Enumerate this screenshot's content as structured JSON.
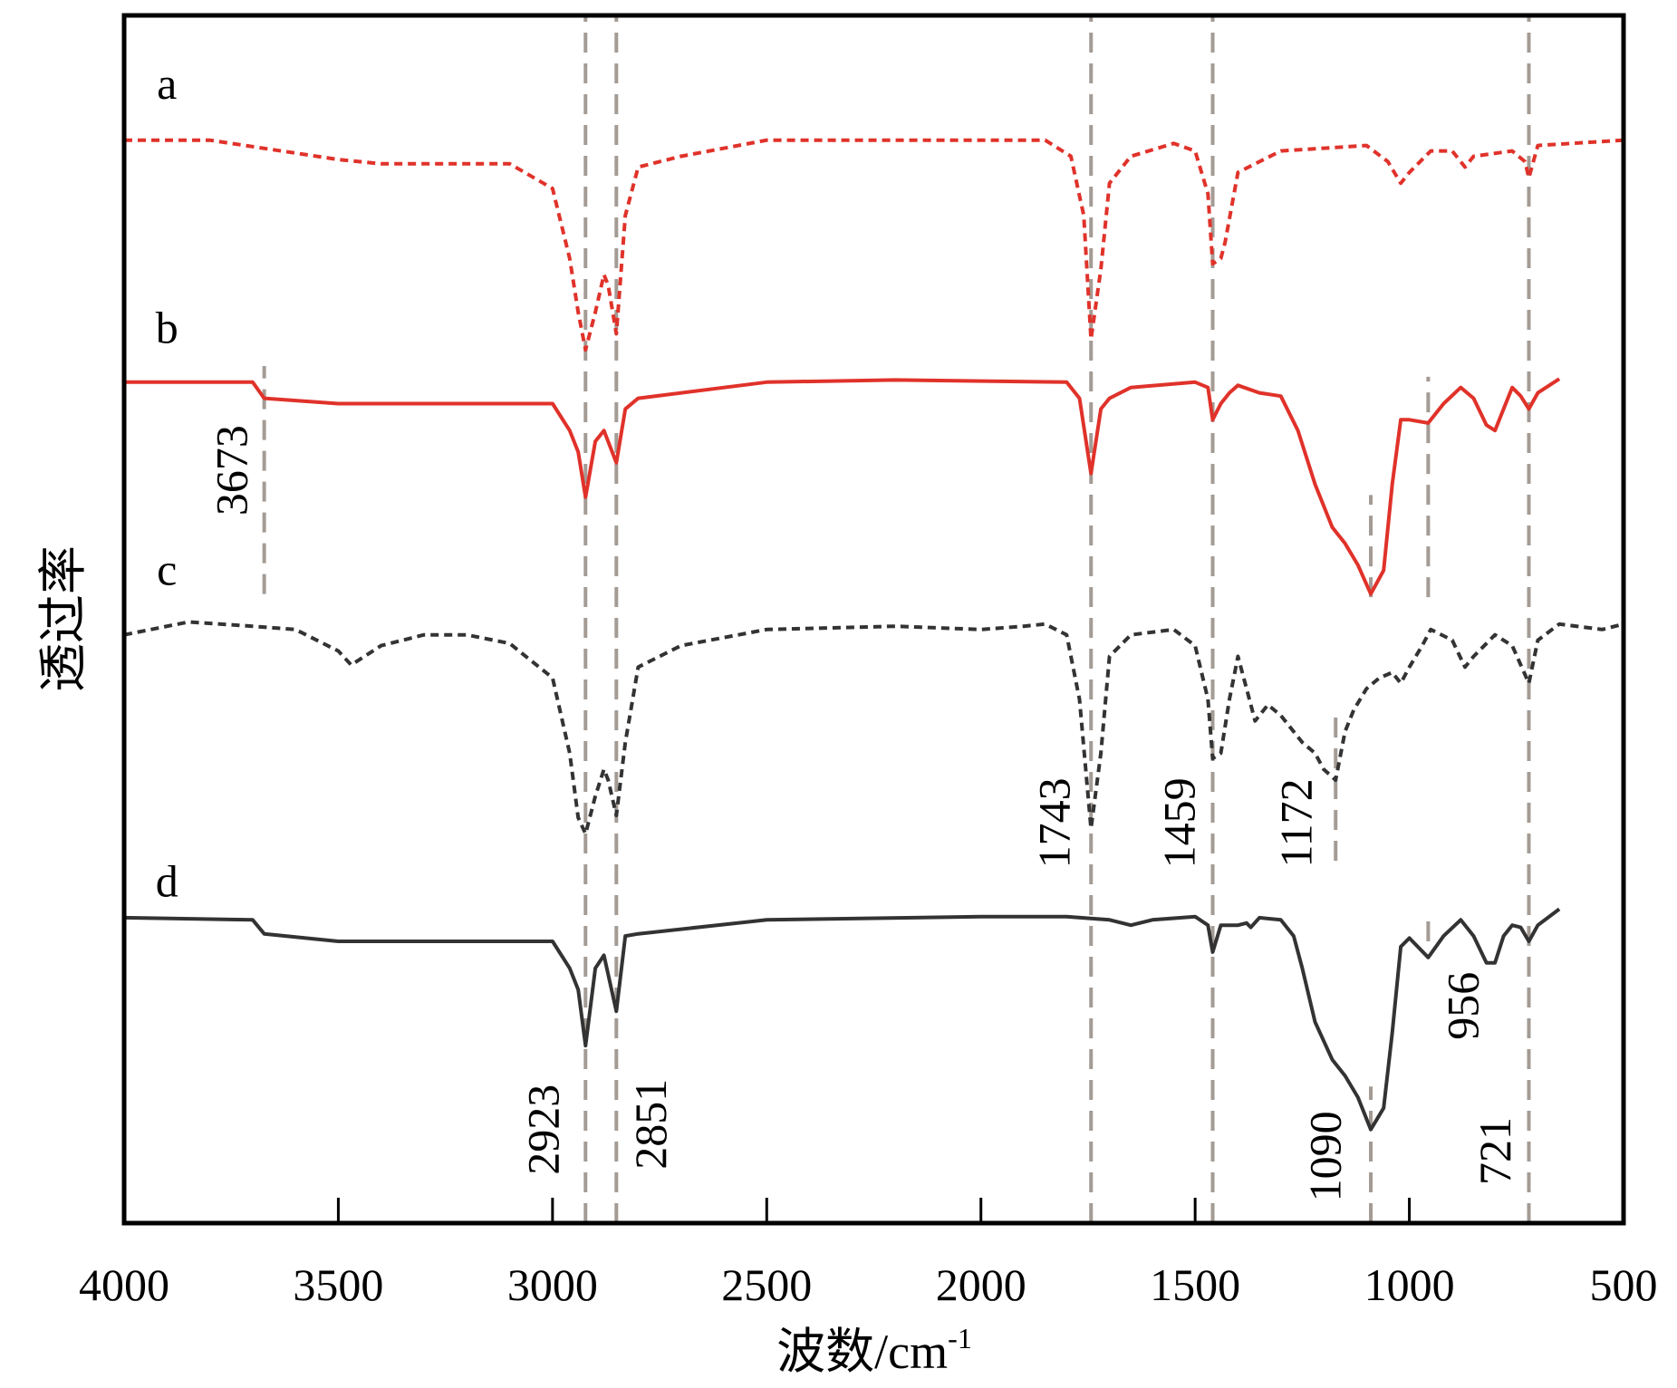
{
  "chart_data": {
    "type": "line",
    "title": "",
    "xlabel": "波数/cm",
    "xlabel_sup": "-1",
    "ylabel": "透过率",
    "xlim": [
      4000,
      500
    ],
    "ylim": [
      0,
      112.3
    ],
    "xticks": [
      4000,
      3500,
      3000,
      2500,
      2000,
      1500,
      1000,
      500
    ],
    "xtick_labels": [
      "4000",
      "3500",
      "3000",
      "2500",
      "2000",
      "1500",
      "1000",
      "500"
    ],
    "grid": false,
    "series": [
      {
        "name": "a",
        "label_y": 105.9,
        "color": "#e0322a",
        "style": "dashed",
        "points": [
          [
            4000,
            100.7
          ],
          [
            3800,
            100.7
          ],
          [
            3500,
            98.9
          ],
          [
            3400,
            98.5
          ],
          [
            3100,
            98.5
          ],
          [
            3000,
            96.2
          ],
          [
            2960,
            89.7
          ],
          [
            2940,
            84.7
          ],
          [
            2923,
            81.2
          ],
          [
            2900,
            84.7
          ],
          [
            2880,
            88.2
          ],
          [
            2870,
            87.2
          ],
          [
            2851,
            82.7
          ],
          [
            2830,
            93.7
          ],
          [
            2800,
            98.2
          ],
          [
            2700,
            99.2
          ],
          [
            2500,
            100.7
          ],
          [
            1850,
            100.7
          ],
          [
            1790,
            99.2
          ],
          [
            1760,
            93.7
          ],
          [
            1743,
            82.2
          ],
          [
            1720,
            88.7
          ],
          [
            1700,
            96.7
          ],
          [
            1650,
            99.2
          ],
          [
            1550,
            100.4
          ],
          [
            1500,
            99.7
          ],
          [
            1470,
            95.7
          ],
          [
            1459,
            89.2
          ],
          [
            1440,
            89.7
          ],
          [
            1430,
            91.2
          ],
          [
            1400,
            97.7
          ],
          [
            1300,
            99.7
          ],
          [
            1100,
            100.2
          ],
          [
            1050,
            98.7
          ],
          [
            1020,
            96.7
          ],
          [
            1000,
            97.7
          ],
          [
            950,
            99.7
          ],
          [
            900,
            99.7
          ],
          [
            870,
            98.2
          ],
          [
            850,
            99.2
          ],
          [
            760,
            99.7
          ],
          [
            730,
            98.7
          ],
          [
            721,
            97.2
          ],
          [
            700,
            100.2
          ],
          [
            500,
            100.7
          ]
        ]
      },
      {
        "name": "b",
        "label_y": 83.2,
        "color": "#e0322a",
        "style": "solid",
        "points": [
          [
            4000,
            78.2
          ],
          [
            3700,
            78.2
          ],
          [
            3673,
            76.7
          ],
          [
            3500,
            76.2
          ],
          [
            3000,
            76.2
          ],
          [
            2960,
            73.7
          ],
          [
            2940,
            71.7
          ],
          [
            2923,
            67.5
          ],
          [
            2900,
            72.7
          ],
          [
            2880,
            73.7
          ],
          [
            2851,
            70.7
          ],
          [
            2830,
            75.7
          ],
          [
            2800,
            76.7
          ],
          [
            2500,
            78.2
          ],
          [
            2200,
            78.4
          ],
          [
            1800,
            78.2
          ],
          [
            1770,
            76.7
          ],
          [
            1743,
            69.7
          ],
          [
            1720,
            75.7
          ],
          [
            1700,
            76.7
          ],
          [
            1650,
            77.7
          ],
          [
            1500,
            78.2
          ],
          [
            1470,
            77.7
          ],
          [
            1459,
            74.7
          ],
          [
            1440,
            76.2
          ],
          [
            1420,
            77.2
          ],
          [
            1400,
            77.9
          ],
          [
            1350,
            77.2
          ],
          [
            1300,
            76.9
          ],
          [
            1260,
            73.7
          ],
          [
            1220,
            68.7
          ],
          [
            1180,
            64.7
          ],
          [
            1150,
            63.2
          ],
          [
            1120,
            61.2
          ],
          [
            1090,
            58.5
          ],
          [
            1060,
            60.7
          ],
          [
            1040,
            68.7
          ],
          [
            1020,
            74.7
          ],
          [
            1000,
            74.7
          ],
          [
            956,
            74.4
          ],
          [
            920,
            76.2
          ],
          [
            880,
            77.7
          ],
          [
            850,
            76.7
          ],
          [
            820,
            74.2
          ],
          [
            800,
            73.7
          ],
          [
            780,
            75.7
          ],
          [
            760,
            77.7
          ],
          [
            740,
            76.9
          ],
          [
            721,
            75.7
          ],
          [
            700,
            77.2
          ],
          [
            650,
            78.5
          ]
        ]
      },
      {
        "name": "c",
        "label_y": 60.7,
        "color": "#333333",
        "style": "dashed",
        "points": [
          [
            4000,
            54.7
          ],
          [
            3850,
            55.9
          ],
          [
            3700,
            55.5
          ],
          [
            3600,
            55.2
          ],
          [
            3500,
            53.2
          ],
          [
            3470,
            51.9
          ],
          [
            3400,
            53.7
          ],
          [
            3300,
            54.7
          ],
          [
            3200,
            54.7
          ],
          [
            3100,
            53.9
          ],
          [
            3000,
            50.7
          ],
          [
            2960,
            43.7
          ],
          [
            2940,
            37.7
          ],
          [
            2923,
            36.2
          ],
          [
            2900,
            39.7
          ],
          [
            2880,
            42.2
          ],
          [
            2870,
            41.2
          ],
          [
            2851,
            37.9
          ],
          [
            2830,
            44.7
          ],
          [
            2800,
            51.7
          ],
          [
            2700,
            53.7
          ],
          [
            2500,
            55.2
          ],
          [
            2200,
            55.5
          ],
          [
            2000,
            55.2
          ],
          [
            1900,
            55.5
          ],
          [
            1850,
            55.7
          ],
          [
            1800,
            54.7
          ],
          [
            1770,
            48.7
          ],
          [
            1743,
            36.7
          ],
          [
            1720,
            43.7
          ],
          [
            1700,
            52.7
          ],
          [
            1650,
            54.7
          ],
          [
            1550,
            55.2
          ],
          [
            1500,
            53.7
          ],
          [
            1470,
            48.7
          ],
          [
            1459,
            43.2
          ],
          [
            1440,
            43.7
          ],
          [
            1420,
            48.7
          ],
          [
            1400,
            52.7
          ],
          [
            1380,
            49.7
          ],
          [
            1360,
            46.7
          ],
          [
            1330,
            48.2
          ],
          [
            1300,
            47.2
          ],
          [
            1250,
            44.7
          ],
          [
            1220,
            43.7
          ],
          [
            1200,
            42.2
          ],
          [
            1172,
            41.2
          ],
          [
            1150,
            45.7
          ],
          [
            1130,
            47.7
          ],
          [
            1100,
            49.7
          ],
          [
            1070,
            50.7
          ],
          [
            1040,
            51.2
          ],
          [
            1020,
            50.2
          ],
          [
            1000,
            51.7
          ],
          [
            970,
            53.7
          ],
          [
            950,
            55.2
          ],
          [
            900,
            54.2
          ],
          [
            870,
            51.7
          ],
          [
            850,
            52.7
          ],
          [
            800,
            54.7
          ],
          [
            760,
            53.7
          ],
          [
            721,
            50.2
          ],
          [
            700,
            54.2
          ],
          [
            650,
            55.7
          ],
          [
            550,
            55.2
          ],
          [
            500,
            55.7
          ]
        ]
      },
      {
        "name": "d",
        "label_y": 31.7,
        "color": "#333333",
        "style": "solid",
        "points": [
          [
            4000,
            28.4
          ],
          [
            3700,
            28.2
          ],
          [
            3673,
            26.9
          ],
          [
            3500,
            26.2
          ],
          [
            3000,
            26.2
          ],
          [
            2960,
            23.7
          ],
          [
            2940,
            21.7
          ],
          [
            2923,
            16.5
          ],
          [
            2900,
            23.7
          ],
          [
            2880,
            24.9
          ],
          [
            2851,
            19.7
          ],
          [
            2830,
            26.7
          ],
          [
            2800,
            26.9
          ],
          [
            2500,
            28.2
          ],
          [
            2000,
            28.5
          ],
          [
            1800,
            28.5
          ],
          [
            1700,
            28.2
          ],
          [
            1650,
            27.7
          ],
          [
            1600,
            28.2
          ],
          [
            1500,
            28.5
          ],
          [
            1470,
            27.7
          ],
          [
            1459,
            25.2
          ],
          [
            1440,
            27.7
          ],
          [
            1400,
            27.7
          ],
          [
            1380,
            27.9
          ],
          [
            1370,
            27.5
          ],
          [
            1350,
            28.4
          ],
          [
            1300,
            28.2
          ],
          [
            1270,
            26.7
          ],
          [
            1250,
            23.7
          ],
          [
            1220,
            18.7
          ],
          [
            1180,
            15.2
          ],
          [
            1150,
            13.7
          ],
          [
            1120,
            11.7
          ],
          [
            1090,
            8.7
          ],
          [
            1060,
            10.7
          ],
          [
            1040,
            17.7
          ],
          [
            1020,
            25.7
          ],
          [
            1000,
            26.5
          ],
          [
            956,
            24.7
          ],
          [
            920,
            26.7
          ],
          [
            880,
            28.2
          ],
          [
            850,
            26.7
          ],
          [
            820,
            24.2
          ],
          [
            800,
            24.2
          ],
          [
            780,
            26.7
          ],
          [
            760,
            27.7
          ],
          [
            740,
            27.5
          ],
          [
            721,
            26.2
          ],
          [
            700,
            27.7
          ],
          [
            650,
            29.2
          ]
        ]
      }
    ],
    "reference_lines": [
      {
        "x": 2923,
        "y": [
          0,
          112.3
        ]
      },
      {
        "x": 2851,
        "y": [
          0,
          112.3
        ]
      },
      {
        "x": 1743,
        "y": [
          0,
          112.3
        ]
      },
      {
        "x": 1459,
        "y": [
          0,
          112.3
        ]
      },
      {
        "x": 721,
        "y": [
          0,
          112.3
        ]
      },
      {
        "x": 3673,
        "y": [
          58.5,
          79.7
        ]
      },
      {
        "x": 1172,
        "y": [
          33.7,
          47.7
        ]
      },
      {
        "x": 1090,
        "y": [
          58.2,
          67.7
        ]
      },
      {
        "x": 1090,
        "y": [
          0,
          12.7
        ]
      },
      {
        "x": 956,
        "y": [
          58.2,
          78.7
        ]
      },
      {
        "x": 956,
        "y": [
          26.2,
          28.7
        ]
      }
    ],
    "annotations": [
      {
        "text": "3673",
        "x": 3749,
        "y": 70.0
      },
      {
        "text": "1743",
        "x": 1829,
        "y": 37.2
      },
      {
        "text": "1459",
        "x": 1537,
        "y": 37.2
      },
      {
        "text": "1172",
        "x": 1265,
        "y": 37.2
      },
      {
        "text": "2923",
        "x": 3022,
        "y": 8.7
      },
      {
        "text": "2851",
        "x": 2771,
        "y": 9.2
      },
      {
        "text": "1090",
        "x": 1197,
        "y": 6.2
      },
      {
        "text": "956",
        "x": 875,
        "y": 20.2
      },
      {
        "text": "721",
        "x": 800,
        "y": 6.7
      }
    ],
    "reference_color": "#a39b94"
  }
}
